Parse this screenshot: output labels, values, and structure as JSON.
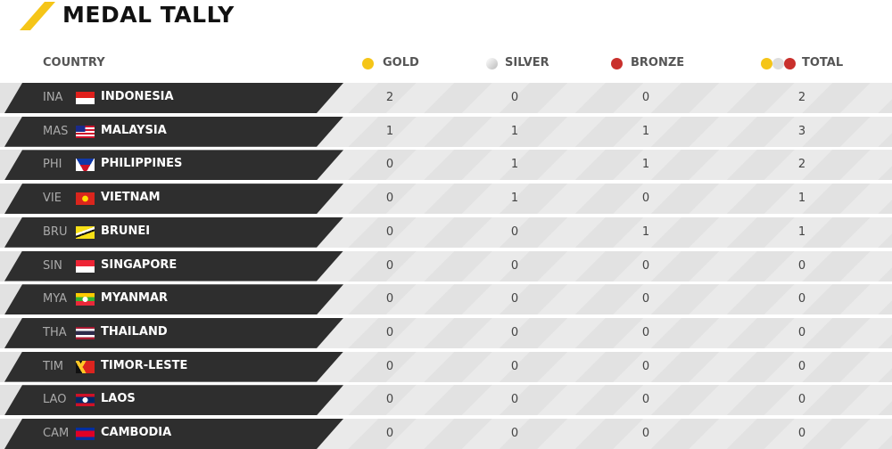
{
  "header": {
    "title": "MEDAL TALLY"
  },
  "table": {
    "columns": [
      "COUNTRY",
      "GOLD",
      "SILVER",
      "BRONZE",
      "TOTAL"
    ],
    "rows": [
      [
        "INA",
        "INDONESIA",
        "2",
        "0",
        "0",
        "2"
      ],
      [
        "MAS",
        "MALAYSIA",
        "1",
        "1",
        "1",
        "3"
      ],
      [
        "PHI",
        "PHILIPPINES",
        "0",
        "1",
        "1",
        "2"
      ],
      [
        "VIE",
        "VIETNAM",
        "0",
        "1",
        "0",
        "1"
      ],
      [
        "BRU",
        "BRUNEI",
        "0",
        "0",
        "1",
        "1"
      ],
      [
        "SIN",
        "SINGAPORE",
        "0",
        "0",
        "0",
        "0"
      ],
      [
        "MYA",
        "MYANMAR",
        "0",
        "0",
        "0",
        "0"
      ],
      [
        "THA",
        "THAILAND",
        "0",
        "0",
        "0",
        "0"
      ],
      [
        "TIM",
        "TIMOR-LESTE",
        "0",
        "0",
        "0",
        "0"
      ],
      [
        "LAO",
        "LAOS",
        "0",
        "0",
        "0",
        "0"
      ],
      [
        "CAM",
        "CAMBODIA",
        "0",
        "0",
        "0",
        "0"
      ]
    ]
  }
}
